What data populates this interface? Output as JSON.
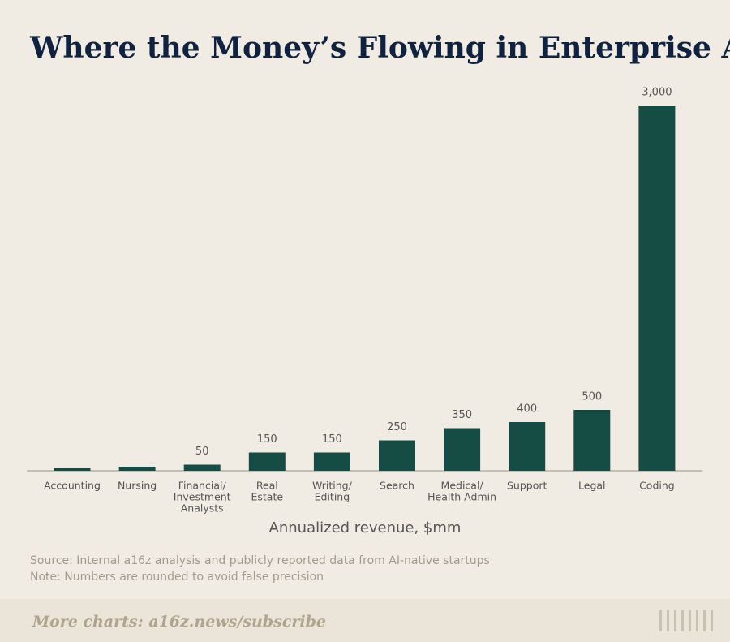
{
  "chart_data": {
    "type": "bar",
    "title": "Where the Money’s Flowing in Enterprise AI",
    "categories": [
      [
        "Accounting"
      ],
      [
        "Nursing"
      ],
      [
        "Financial/",
        "Investment",
        "Analysts"
      ],
      [
        "Real",
        "Estate"
      ],
      [
        "Writing/",
        "Editing"
      ],
      [
        "Search"
      ],
      [
        "Medical/",
        "Health Admin"
      ],
      [
        "Support"
      ],
      [
        "Legal"
      ],
      [
        "Coding"
      ]
    ],
    "values": [
      20,
      33,
      50,
      150,
      150,
      250,
      350,
      400,
      500,
      3000
    ],
    "value_labels": [
      null,
      null,
      "50",
      "150",
      "150",
      "250",
      "350",
      "400",
      "500",
      "3,000"
    ],
    "color": "#154d45",
    "ylim": [
      0,
      3000
    ],
    "x_label": "Annualized revenue, $mm",
    "notes": [
      "Source: Internal a16z analysis and publicly reported data from AI-native startups",
      "Note: Numbers are rounded to avoid false precision"
    ],
    "footer": "More charts: a16z.news/subscribe"
  }
}
